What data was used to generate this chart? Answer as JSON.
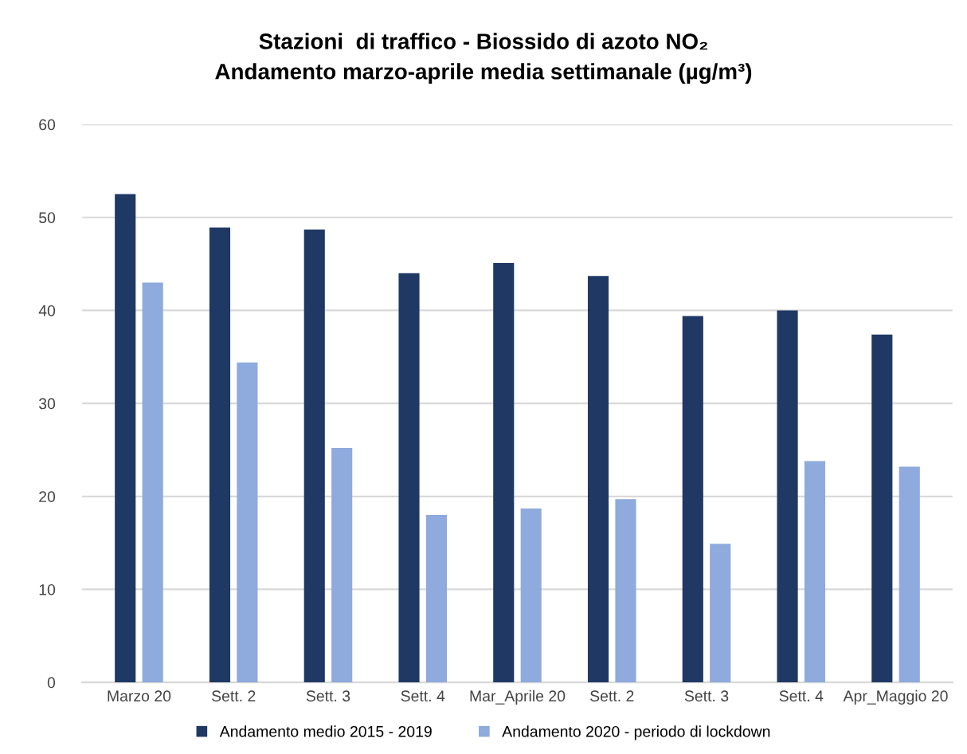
{
  "chart_data": {
    "type": "bar",
    "title": "Stazioni  di traffico - Biossido di azoto NO₂",
    "subtitle": "Andamento marzo-aprile media settimanale (µg/m³)",
    "categories": [
      "Marzo 20",
      "Sett. 2",
      "Sett. 3",
      "Sett. 4",
      "Mar_Aprile 20",
      "Sett. 2",
      "Sett. 3",
      "Sett. 4",
      "Apr_Maggio 20"
    ],
    "series": [
      {
        "name": "Andamento medio 2015 - 2019",
        "color": "#1f3864",
        "values": [
          52.5,
          48.9,
          48.7,
          44.0,
          45.1,
          43.7,
          39.4,
          40.0,
          37.4
        ]
      },
      {
        "name": "Andamento 2020 - periodo di lockdown",
        "color": "#8faadc",
        "values": [
          43.0,
          34.4,
          25.2,
          18.0,
          18.7,
          19.7,
          14.9,
          23.8,
          23.2
        ]
      }
    ],
    "ylim": [
      0,
      60
    ],
    "yticks": [
      0,
      10,
      20,
      30,
      40,
      50,
      60
    ],
    "grid": "y",
    "legend": "bottom"
  }
}
